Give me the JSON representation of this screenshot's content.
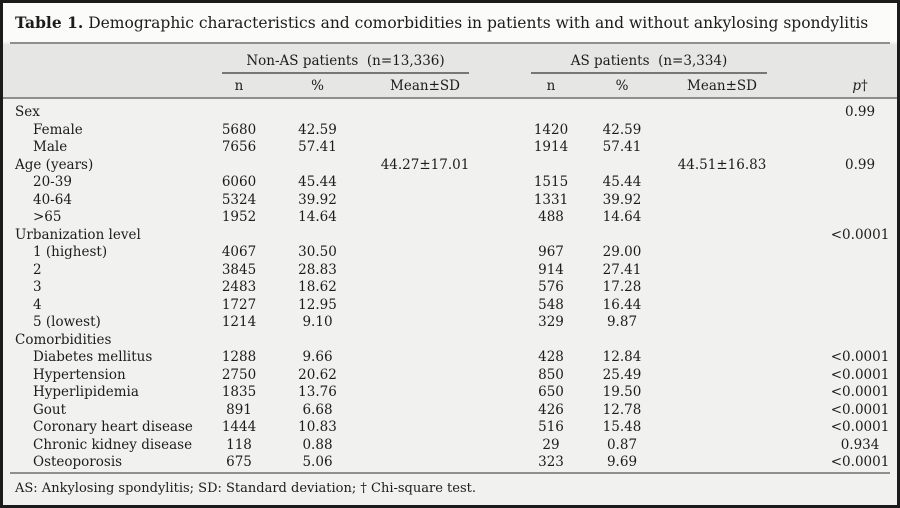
{
  "table": {
    "title_label": "Table 1.",
    "title_text": " Demographic characteristics and comorbidities in patients with and without ankylosing spondylitis",
    "groups": [
      {
        "label": "Non-AS patients  (n=13,336)"
      },
      {
        "label": "AS patients  (n=3,334)"
      }
    ],
    "subheaders": {
      "n": "n",
      "pct": "%",
      "mean": "Mean±SD"
    },
    "p_header": {
      "p": "p",
      "dagger": "†"
    },
    "rows": [
      {
        "label": "Sex",
        "indent": 0,
        "cells": [
          "",
          "",
          "",
          "",
          "",
          "",
          "0.99"
        ]
      },
      {
        "label": "Female",
        "indent": 1,
        "cells": [
          "5680",
          "42.59",
          "",
          "1420",
          "42.59",
          "",
          ""
        ]
      },
      {
        "label": "Male",
        "indent": 1,
        "cells": [
          "7656",
          "57.41",
          "",
          "1914",
          "57.41",
          "",
          ""
        ]
      },
      {
        "label": "Age (years)",
        "indent": 0,
        "cells": [
          "",
          "",
          "44.27±17.01",
          "",
          "",
          "44.51±16.83",
          "0.99"
        ]
      },
      {
        "label": "20-39",
        "indent": 1,
        "cells": [
          "6060",
          "45.44",
          "",
          "1515",
          "45.44",
          "",
          ""
        ]
      },
      {
        "label": "40-64",
        "indent": 1,
        "cells": [
          "5324",
          "39.92",
          "",
          "1331",
          "39.92",
          "",
          ""
        ]
      },
      {
        "label": ">65",
        "indent": 1,
        "cells": [
          "1952",
          "14.64",
          "",
          "488",
          "14.64",
          "",
          ""
        ]
      },
      {
        "label": "Urbanization level",
        "indent": 0,
        "cells": [
          "",
          "",
          "",
          "",
          "",
          "",
          "<0.0001"
        ]
      },
      {
        "label": "1 (highest)",
        "indent": 1,
        "cells": [
          "4067",
          "30.50",
          "",
          "967",
          "29.00",
          "",
          ""
        ]
      },
      {
        "label": "2",
        "indent": 1,
        "cells": [
          "3845",
          "28.83",
          "",
          "914",
          "27.41",
          "",
          ""
        ]
      },
      {
        "label": "3",
        "indent": 1,
        "cells": [
          "2483",
          "18.62",
          "",
          "576",
          "17.28",
          "",
          ""
        ]
      },
      {
        "label": "4",
        "indent": 1,
        "cells": [
          "1727",
          "12.95",
          "",
          "548",
          "16.44",
          "",
          ""
        ]
      },
      {
        "label": "5 (lowest)",
        "indent": 1,
        "cells": [
          "1214",
          "9.10",
          "",
          "329",
          "9.87",
          "",
          ""
        ]
      },
      {
        "label": "Comorbidities",
        "indent": 0,
        "cells": [
          "",
          "",
          "",
          "",
          "",
          "",
          ""
        ]
      },
      {
        "label": "Diabetes mellitus",
        "indent": 1,
        "cells": [
          "1288",
          "9.66",
          "",
          "428",
          "12.84",
          "",
          "<0.0001"
        ]
      },
      {
        "label": "Hypertension",
        "indent": 1,
        "cells": [
          "2750",
          "20.62",
          "",
          "850",
          "25.49",
          "",
          "<0.0001"
        ]
      },
      {
        "label": "Hyperlipidemia",
        "indent": 1,
        "cells": [
          "1835",
          "13.76",
          "",
          "650",
          "19.50",
          "",
          "<0.0001"
        ]
      },
      {
        "label": "Gout",
        "indent": 1,
        "cells": [
          "891",
          "6.68",
          "",
          "426",
          "12.78",
          "",
          "<0.0001"
        ]
      },
      {
        "label": "Coronary heart disease",
        "indent": 1,
        "cells": [
          "1444",
          "10.83",
          "",
          "516",
          "15.48",
          "",
          "<0.0001"
        ]
      },
      {
        "label": "Chronic kidney disease",
        "indent": 1,
        "cells": [
          "118",
          "0.88",
          "",
          "29",
          "0.87",
          "",
          "0.934"
        ]
      },
      {
        "label": "Osteoporosis",
        "indent": 1,
        "cells": [
          "675",
          "5.06",
          "",
          "323",
          "9.69",
          "",
          "<0.0001"
        ]
      }
    ],
    "footnote": "AS: Ankylosing spondylitis; SD: Standard deviation; † Chi-square test.",
    "colors": {
      "frame_border": "#1b1b1b",
      "title_band_bg": "#fbfbfa",
      "header_band_bg": "#e6e6e4",
      "body_bg": "#f1f1ef",
      "rule": "#8f8f8f",
      "text": "#1c1c1c"
    }
  }
}
